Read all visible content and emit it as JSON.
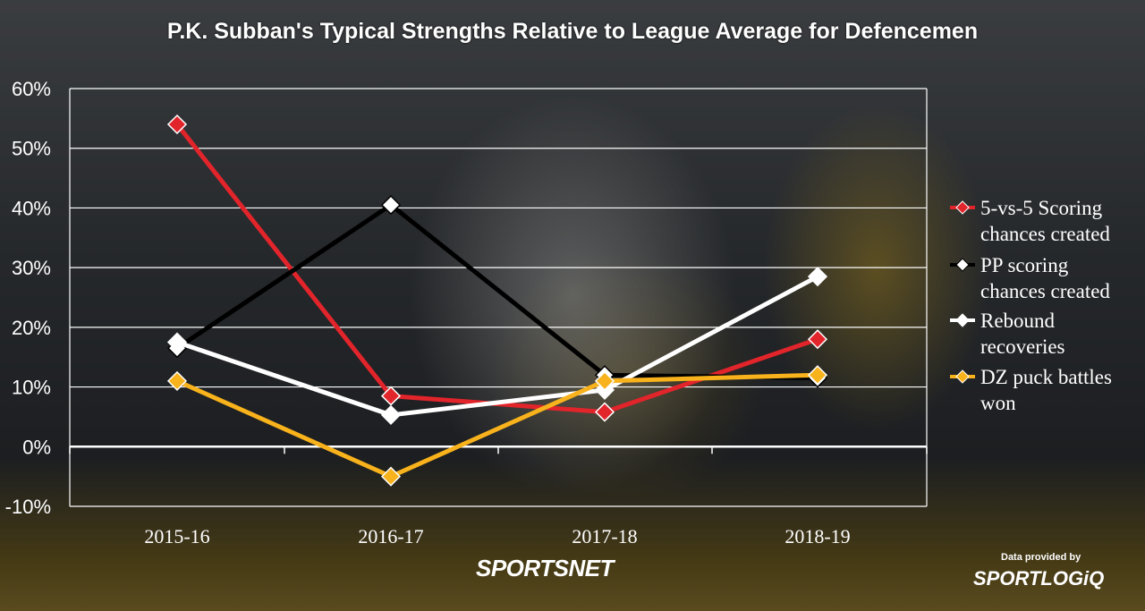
{
  "chart_data": {
    "type": "line",
    "title": "P.K. Subban's Typical Strengths Relative to League Average for Defencemen",
    "categories": [
      "2015-16",
      "2016-17",
      "2017-18",
      "2018-19"
    ],
    "ylim": [
      -10,
      60
    ],
    "yticks": [
      -10,
      0,
      10,
      20,
      30,
      40,
      50,
      60
    ],
    "ytick_labels": [
      "-10%",
      "0%",
      "10%",
      "20%",
      "30%",
      "40%",
      "50%",
      "60%"
    ],
    "grid": true,
    "legend_position": "right",
    "series": [
      {
        "name": "5-vs-5 Scoring chances created",
        "legend_lines": [
          "5-vs-5 Scoring",
          "chances created"
        ],
        "values": [
          54,
          8.5,
          5.8,
          18
        ],
        "color": "#e2242b"
      },
      {
        "name": "PP scoring chances created",
        "legend_lines": [
          "PP scoring",
          "chances created"
        ],
        "values": [
          16.5,
          40.5,
          12,
          11.5
        ],
        "color": "#000000"
      },
      {
        "name": "Rebound recoveries",
        "legend_lines": [
          "Rebound",
          "recoveries"
        ],
        "values": [
          17.5,
          5.3,
          9.5,
          28.5
        ],
        "color": "#ffffff"
      },
      {
        "name": "DZ puck battles won",
        "legend_lines": [
          "DZ puck battles",
          "won"
        ],
        "values": [
          11,
          -5,
          11,
          12
        ],
        "color": "#f8b21c"
      }
    ]
  },
  "credits": {
    "network": "SPORTSNET",
    "provided_by": "Data provided by",
    "provider": "SPORTLOGiQ"
  }
}
